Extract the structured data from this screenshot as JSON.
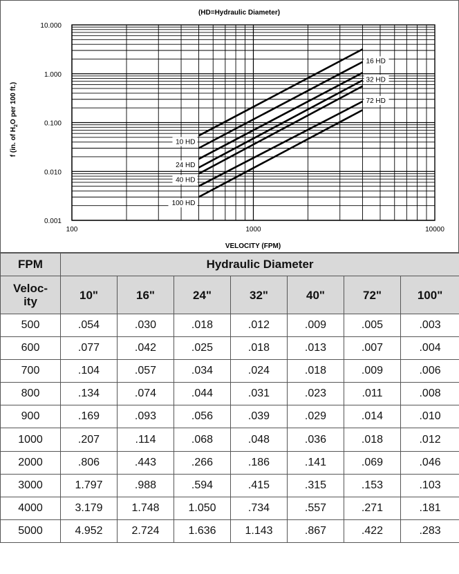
{
  "chart_data": {
    "type": "line",
    "title": "(HD=Hydraulic Diameter)",
    "xlabel": "VELOCITY (FPM)",
    "ylabel": {
      "pre": "f (in. of H",
      "sub": "2",
      "post": "O per 100 ft.)"
    },
    "x_scale": "log",
    "y_scale": "log",
    "xlim": [
      100,
      10000
    ],
    "ylim": [
      0.001,
      10
    ],
    "x_ticks": [
      "100",
      "1000",
      "10000"
    ],
    "y_ticks": [
      "10.000",
      "1.000",
      "0.100",
      "0.010",
      "0.001"
    ],
    "grid": true,
    "series": [
      {
        "name": "10 HD",
        "x": [
          500,
          4000
        ],
        "y": [
          0.054,
          3.179
        ]
      },
      {
        "name": "16 HD",
        "x": [
          500,
          4000
        ],
        "y": [
          0.03,
          1.748
        ]
      },
      {
        "name": "24 HD",
        "x": [
          500,
          4000
        ],
        "y": [
          0.018,
          1.05
        ]
      },
      {
        "name": "32 HD",
        "x": [
          500,
          4000
        ],
        "y": [
          0.012,
          0.734
        ]
      },
      {
        "name": "40 HD",
        "x": [
          500,
          4000
        ],
        "y": [
          0.009,
          0.557
        ]
      },
      {
        "name": "72 HD",
        "x": [
          500,
          4000
        ],
        "y": [
          0.005,
          0.271
        ]
      },
      {
        "name": "100 HD",
        "x": [
          500,
          4000
        ],
        "y": [
          0.003,
          0.181
        ]
      }
    ]
  },
  "table": {
    "fpm_header": "FPM",
    "group_header": "Hydraulic Diameter",
    "velocity_header": "Veloc-ity",
    "columns": [
      "10\"",
      "16\"",
      "24\"",
      "32\"",
      "40\"",
      "72\"",
      "100\""
    ],
    "rows": [
      [
        "500",
        ".054",
        ".030",
        ".018",
        ".012",
        ".009",
        ".005",
        ".003"
      ],
      [
        "600",
        ".077",
        ".042",
        ".025",
        ".018",
        ".013",
        ".007",
        ".004"
      ],
      [
        "700",
        ".104",
        ".057",
        ".034",
        ".024",
        ".018",
        ".009",
        ".006"
      ],
      [
        "800",
        ".134",
        ".074",
        ".044",
        ".031",
        ".023",
        ".011",
        ".008"
      ],
      [
        "900",
        ".169",
        ".093",
        ".056",
        ".039",
        ".029",
        ".014",
        ".010"
      ],
      [
        "1000",
        ".207",
        ".114",
        ".068",
        ".048",
        ".036",
        ".018",
        ".012"
      ],
      [
        "2000",
        ".806",
        ".443",
        ".266",
        ".186",
        ".141",
        ".069",
        ".046"
      ],
      [
        "3000",
        "1.797",
        ".988",
        ".594",
        ".415",
        ".315",
        ".153",
        ".103"
      ],
      [
        "4000",
        "3.179",
        "1.748",
        "1.050",
        ".734",
        ".557",
        ".271",
        ".181"
      ],
      [
        "5000",
        "4.952",
        "2.724",
        "1.636",
        "1.143",
        ".867",
        ".422",
        ".283"
      ]
    ]
  }
}
